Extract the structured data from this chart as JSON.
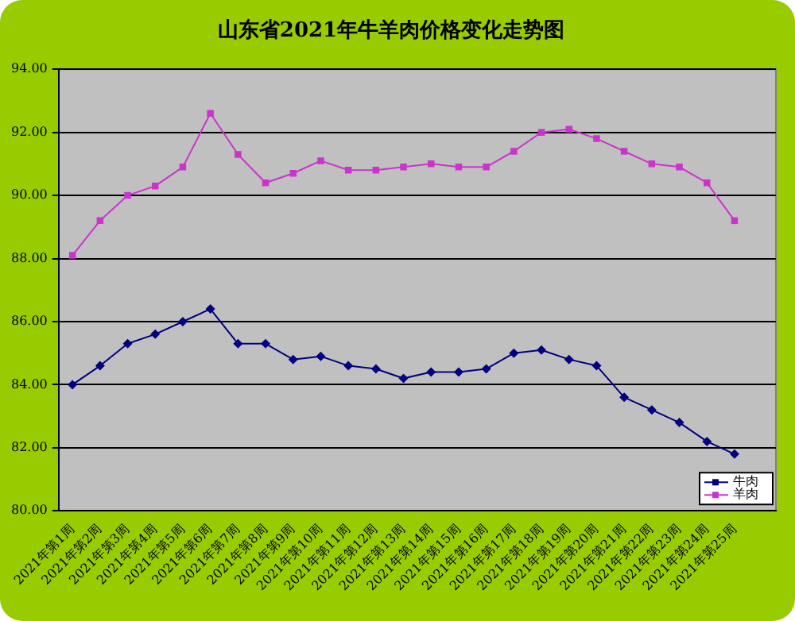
{
  "chart_data": {
    "type": "line",
    "title": "山东省2021年牛羊肉价格变化走势图",
    "categories": [
      "2021年第1周",
      "2021年第2周",
      "2021年第3周",
      "2021年第4周",
      "2021年第5周",
      "2021年第6周",
      "2021年第7周",
      "2021年第8周",
      "2021年第9周",
      "2021年第10周",
      "2021年第11周",
      "2021年第12周",
      "2021年第13周",
      "2021年第14周",
      "2021年第15周",
      "2021年第16周",
      "2021年第17周",
      "2021年第18周",
      "2021年第19周",
      "2021年第20周",
      "2021年第21周",
      "2021年第22周",
      "2021年第23周",
      "2021年第24周",
      "2021年第25周",
      null
    ],
    "series": [
      {
        "name": "牛肉",
        "color": "#000080",
        "marker": "diamond",
        "values": [
          84.0,
          84.6,
          85.3,
          85.6,
          86.0,
          86.4,
          85.3,
          85.3,
          84.8,
          84.9,
          84.6,
          84.5,
          84.2,
          84.4,
          84.4,
          84.5,
          85.0,
          85.1,
          84.8,
          84.6,
          83.6,
          83.2,
          82.8,
          82.2,
          81.8,
          null
        ]
      },
      {
        "name": "羊肉",
        "color": "#cc33cc",
        "marker": "square",
        "values": [
          88.1,
          89.2,
          90.0,
          90.3,
          90.9,
          92.6,
          91.3,
          90.4,
          90.7,
          91.1,
          90.8,
          90.8,
          90.9,
          91.0,
          90.9,
          90.9,
          91.4,
          92.0,
          92.1,
          91.8,
          91.4,
          91.0,
          90.9,
          90.4,
          89.2,
          null
        ]
      }
    ],
    "ylim": [
      80,
      94
    ],
    "yticks": [
      {
        "value": 80,
        "label": "80.00"
      },
      {
        "value": 82,
        "label": "82.00"
      },
      {
        "value": 84,
        "label": "84.00"
      },
      {
        "value": 86,
        "label": "86.00"
      },
      {
        "value": 88,
        "label": "88.00"
      },
      {
        "value": 90,
        "label": "90.00"
      },
      {
        "value": 92,
        "label": "92.00"
      },
      {
        "value": 94,
        "label": "94.00"
      }
    ],
    "grid": "y",
    "legend": "bottom right"
  }
}
